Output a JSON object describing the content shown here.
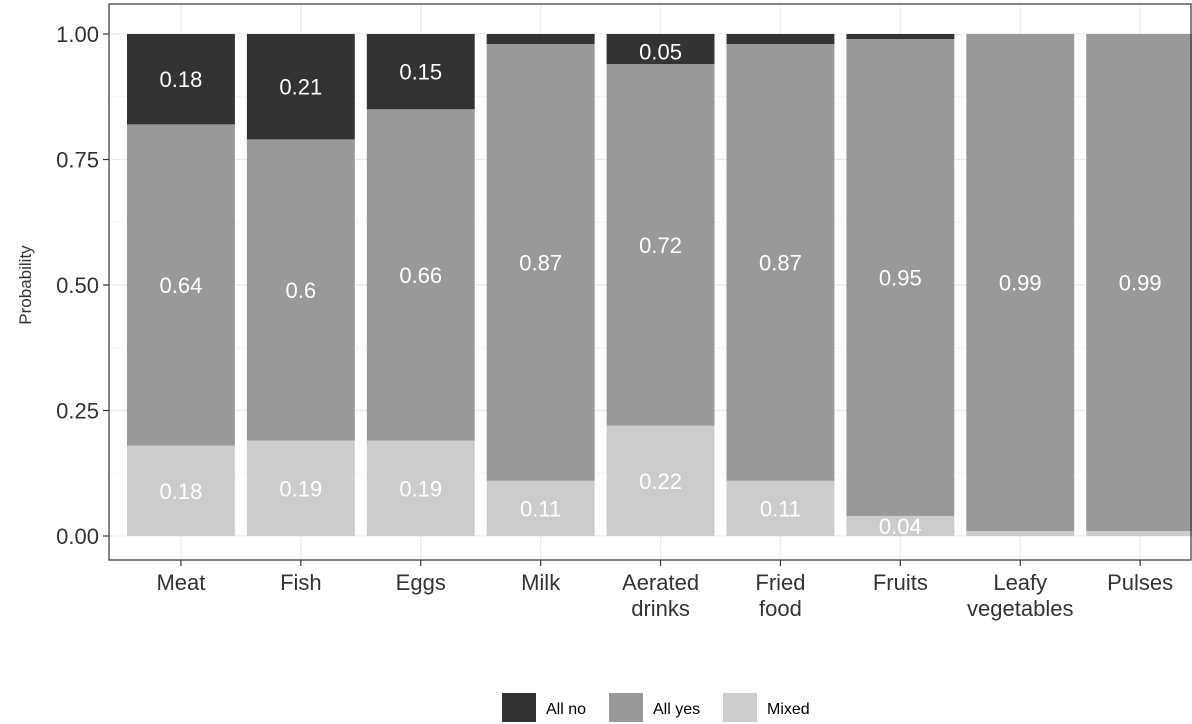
{
  "chart_data": {
    "type": "bar",
    "stacked": true,
    "ylabel": "Probability",
    "xlabel": "",
    "ylim": [
      0,
      1
    ],
    "yticks": [
      0,
      0.25,
      0.5,
      0.75,
      1.0
    ],
    "ytick_labels": [
      "0.00",
      "0.25",
      "0.50",
      "0.75",
      "1.00"
    ],
    "grid": true,
    "legend_position": "bottom",
    "categories": [
      [
        "Meat"
      ],
      [
        "Fish"
      ],
      [
        "Eggs"
      ],
      [
        "Milk"
      ],
      [
        "Aerated",
        "drinks"
      ],
      [
        "Fried",
        "food"
      ],
      [
        "Fruits"
      ],
      [
        "Leafy",
        "vegetables"
      ],
      [
        "Pulses"
      ]
    ],
    "series": [
      {
        "name": "Mixed",
        "color": "#cccccc",
        "values": [
          0.18,
          0.19,
          0.19,
          0.11,
          0.22,
          0.11,
          0.04,
          0.01,
          0.01
        ],
        "labels": [
          "0.18",
          "0.19",
          "0.19",
          "0.11",
          "0.22",
          "0.11",
          "0.04",
          "",
          ""
        ]
      },
      {
        "name": "All yes",
        "color": "#999999",
        "values": [
          0.64,
          0.6,
          0.66,
          0.87,
          0.72,
          0.87,
          0.95,
          0.99,
          0.99
        ],
        "labels": [
          "0.64",
          "0.6",
          "0.66",
          "0.87",
          "0.72",
          "0.87",
          "0.95",
          "0.99",
          "0.99"
        ]
      },
      {
        "name": "All no",
        "color": "#333333",
        "values": [
          0.18,
          0.21,
          0.15,
          0.02,
          0.05,
          0.02,
          0.01,
          0.0,
          0.0
        ],
        "labels": [
          "0.18",
          "0.21",
          "0.15",
          "",
          "0.05",
          "",
          "",
          "",
          ""
        ]
      }
    ],
    "legend_order": [
      "All no",
      "All yes",
      "Mixed"
    ]
  }
}
